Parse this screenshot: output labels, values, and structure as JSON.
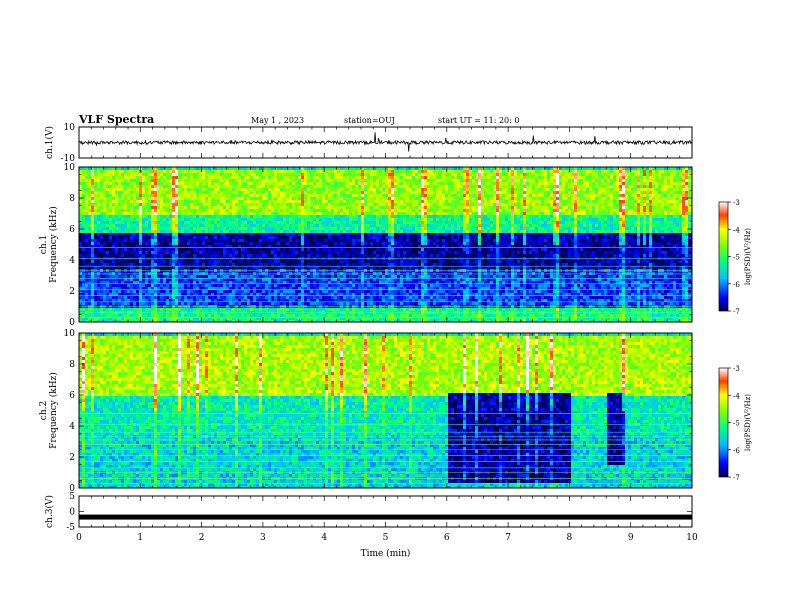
{
  "header": {
    "title": "VLF Spectra",
    "date": "May 1 , 2023",
    "station": "station=OUJ",
    "start": "start UT = 11: 20: 0"
  },
  "chart_data": [
    {
      "type": "line",
      "panel": "ch1-waveform",
      "ylabel": "ch.1(V)",
      "ylim": [
        -10,
        10
      ],
      "yticks": [
        "10",
        "-10"
      ],
      "baseline": 0,
      "x": [
        0,
        10
      ],
      "grid": false
    },
    {
      "type": "heatmap",
      "panel": "ch1-spectrogram",
      "ylabel": "ch.1\nFrequency (kHz)",
      "ylim": [
        0,
        10
      ],
      "yticks": [
        "0",
        "2",
        "4",
        "6",
        "8",
        "10"
      ],
      "colorbar": {
        "label": "log(PSD)(V²/Hz)",
        "range": [
          -7,
          -3
        ],
        "ticks": [
          "-3",
          "-4",
          "-5",
          "-6",
          "-7"
        ]
      },
      "bands": [
        {
          "from": 0,
          "to": 1,
          "level": -5.2
        },
        {
          "from": 1,
          "to": 3.5,
          "level": -6.3
        },
        {
          "from": 3.5,
          "to": 5.8,
          "level": -6.8
        },
        {
          "from": 5.8,
          "to": 7,
          "level": -5.3
        },
        {
          "from": 7,
          "to": 10,
          "level": -4.5
        }
      ]
    },
    {
      "type": "heatmap",
      "panel": "ch2-spectrogram",
      "ylabel": "ch.2\nFrequency (kHz)",
      "ylim": [
        0,
        10
      ],
      "yticks": [
        "0",
        "2",
        "4",
        "6",
        "8",
        "10"
      ],
      "colorbar": {
        "label": "log(PSD)(V²/Hz)",
        "range": [
          -7,
          -3
        ],
        "ticks": [
          "-3",
          "-4",
          "-5",
          "-6",
          "-7"
        ]
      },
      "bands": [
        {
          "from": 0,
          "to": 3.5,
          "level": -5.6
        },
        {
          "from": 3.5,
          "to": 6,
          "level": -5.4
        },
        {
          "from": 6,
          "to": 10,
          "level": -4.4
        }
      ],
      "quiet_regions": [
        {
          "t0": 6.0,
          "t1": 8.0,
          "f0": 0.5,
          "f1": 6.3
        },
        {
          "t0": 8.6,
          "t1": 8.9,
          "f0": 1.5,
          "f1": 6.3
        }
      ]
    },
    {
      "type": "line",
      "panel": "ch3-waveform",
      "ylabel": "ch.3(V)",
      "ylim": [
        -5,
        5
      ],
      "yticks": [
        "5",
        "0",
        "-5"
      ],
      "baseline": -1.8,
      "x": [
        0,
        10
      ],
      "xlabel": "Time (min)",
      "xticks": [
        "0",
        "1",
        "2",
        "3",
        "4",
        "5",
        "6",
        "7",
        "8",
        "9",
        "10"
      ],
      "xlim": [
        0,
        10
      ]
    }
  ]
}
